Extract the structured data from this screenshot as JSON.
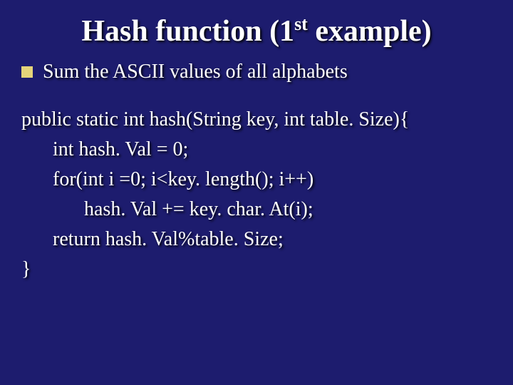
{
  "slide": {
    "background_color": "#1d1c6e",
    "text_color": "#ffffff",
    "shadow_color": "#000000",
    "bullet_color": "#e5d47a",
    "title_fontsize": 42,
    "body_fontsize": 28,
    "title_pre": "Hash function (1",
    "title_sup": "st",
    "title_post": " example)",
    "bullet_text": "Sum the ASCII values of all alphabets",
    "code": {
      "l1": "public static int hash(String key, int table. Size){",
      "l2": "int hash. Val = 0;",
      "l3": "for(int i =0; i<key. length(); i++)",
      "l4": "hash. Val += key. char. At(i);",
      "l5": "return hash. Val%table. Size;",
      "l6": "}"
    }
  }
}
